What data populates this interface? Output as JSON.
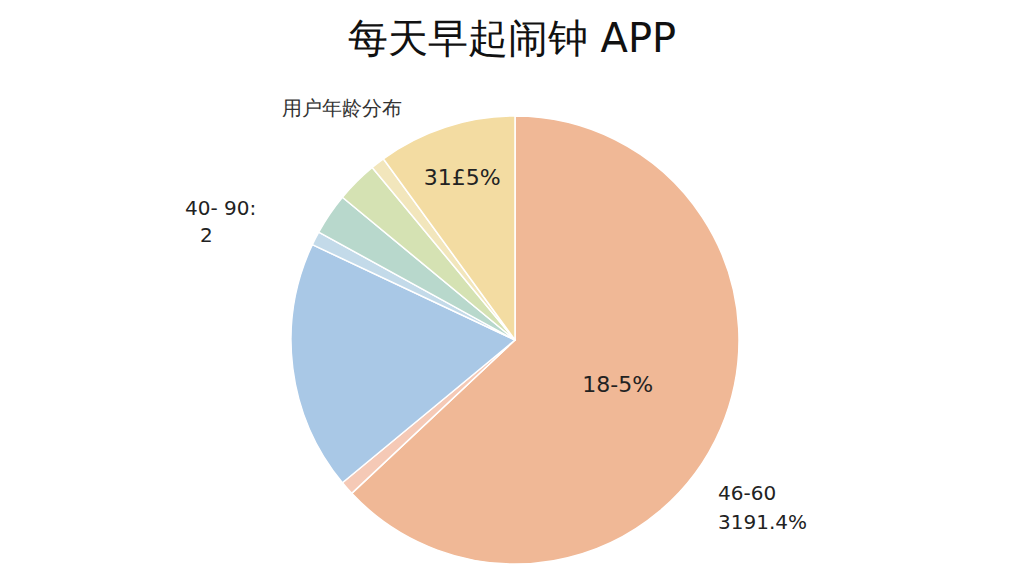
{
  "chart_data": {
    "type": "pie",
    "title": "每天早起闹钟 APP",
    "subtitle": "用户年龄分布",
    "categories": [
      null,
      null,
      null,
      null,
      null,
      null,
      null,
      null
    ],
    "values": [
      63,
      1,
      18,
      1,
      3,
      3,
      1,
      10
    ],
    "labels": [
      "18-5%",
      null,
      null,
      null,
      null,
      null,
      null,
      "31£5%"
    ],
    "colors": [
      "#f0b896",
      "#f5c9b6",
      "#a9c8e6",
      "#c3dae9",
      "#b8d8cc",
      "#d5e2b3",
      "#f2e6bc",
      "#f3dca2"
    ],
    "annotations": [
      "40- 90:",
      "2",
      "46-60",
      "3191.4%"
    ],
    "data_labels": true
  }
}
